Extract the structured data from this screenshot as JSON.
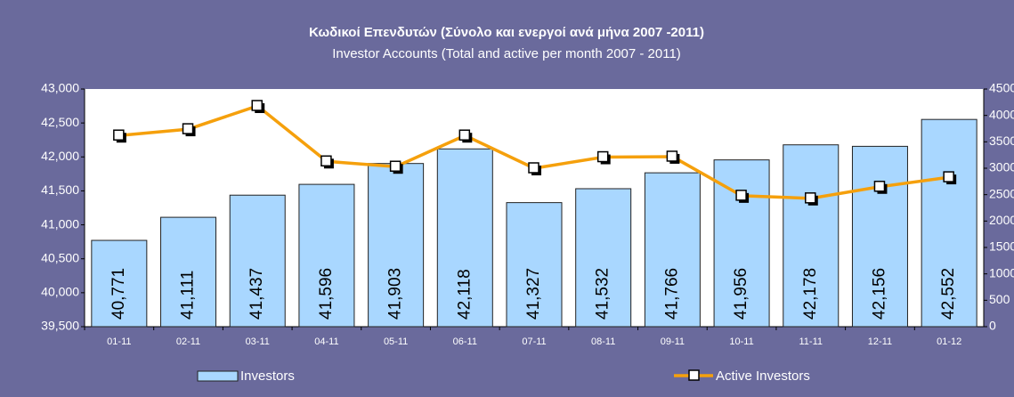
{
  "chart_data": {
    "type": "bar_line",
    "title": "Κωδικοί Επενδυτών (Σύνολο και ενεργοί ανά μήνα 2007 -2011)",
    "subtitle": "Investor Accounts (Total and active per month 2007 - 2011)",
    "categories": [
      "01-11",
      "02-11",
      "03-11",
      "04-11",
      "05-11",
      "06-11",
      "07-11",
      "08-11",
      "09-11",
      "10-11",
      "11-11",
      "12-11",
      "01-12"
    ],
    "series": [
      {
        "name": "Investors",
        "color": "#a9d7ff",
        "type": "bar",
        "values": [
          40771,
          41111,
          41437,
          41596,
          41903,
          42118,
          41327,
          41532,
          41766,
          41956,
          42178,
          42156,
          42552
        ],
        "value_labels": [
          "40,771",
          "41,111",
          "41,437",
          "41,596",
          "41,903",
          "42,118",
          "41,327",
          "41,532",
          "41,766",
          "41,956",
          "42,178",
          "42,156",
          "42,552"
        ]
      },
      {
        "name": "Active Investors",
        "color": "#f5a00c",
        "type": "line",
        "axis": "y2",
        "values": [
          3620,
          3740,
          4180,
          3130,
          3030,
          3620,
          3000,
          3210,
          3220,
          2480,
          2430,
          2650,
          2830
        ]
      }
    ],
    "ylim": [
      39500,
      43000
    ],
    "yticks": [
      {
        "value": 39500,
        "label": "39,500"
      },
      {
        "value": 40000,
        "label": "40,000"
      },
      {
        "value": 40500,
        "label": "40,500"
      },
      {
        "value": 41000,
        "label": "41,000"
      },
      {
        "value": 41500,
        "label": "41,500"
      },
      {
        "value": 42000,
        "label": "42,000"
      },
      {
        "value": 42500,
        "label": "42,500"
      },
      {
        "value": 43000,
        "label": "43,000"
      }
    ],
    "y2lim": [
      0,
      4500
    ],
    "y2ticks": [
      0,
      500,
      1000,
      1500,
      2000,
      2500,
      3000,
      3500,
      4000,
      4500
    ],
    "grid": false
  }
}
